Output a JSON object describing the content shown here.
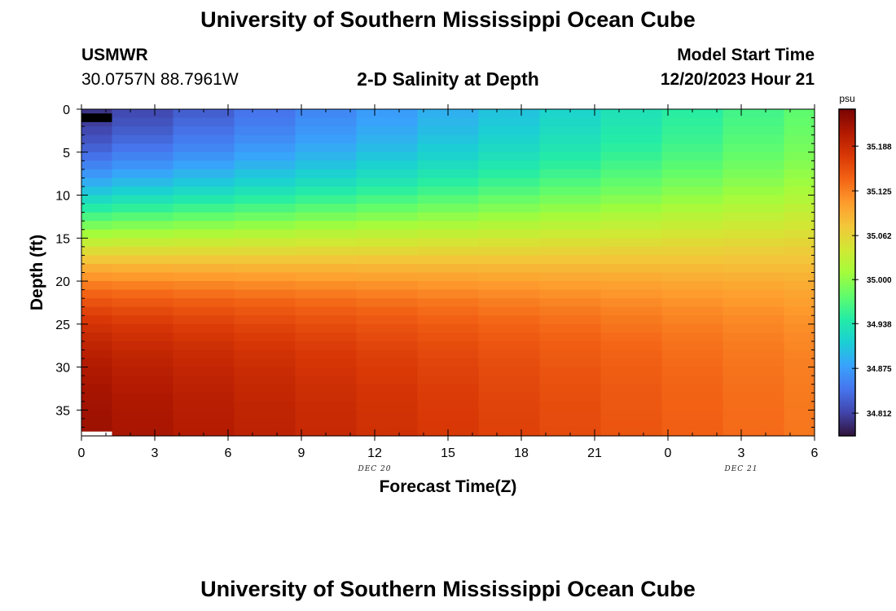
{
  "header": {
    "title": "University of Southern Mississippi Ocean Cube",
    "station": "USMWR",
    "coords": "30.0757N  88.7961W",
    "subtitle": "2-D Salinity at Depth",
    "model_label": "Model Start Time",
    "model_time": "12/20/2023 Hour 21"
  },
  "footer": {
    "title": "University of Southern Mississippi Ocean Cube"
  },
  "chart_data": {
    "type": "heatmap",
    "title": "2-D Salinity at Depth",
    "xlabel": "Forecast Time(Z)",
    "ylabel": "Depth (ft)",
    "x_tick_labels": [
      "0",
      "3",
      "6",
      "9",
      "12",
      "15",
      "18",
      "21",
      "0",
      "3",
      "6"
    ],
    "x_hours": [
      0,
      3,
      6,
      9,
      12,
      15,
      18,
      21,
      24,
      27,
      30
    ],
    "x_range_hours": [
      0,
      30
    ],
    "date_labels": [
      {
        "text": "DEC 20",
        "hour": 12
      },
      {
        "text": "DEC 21",
        "hour": 27
      }
    ],
    "y_ticks": [
      0,
      5,
      10,
      15,
      20,
      25,
      30,
      35
    ],
    "y_range": [
      0,
      38
    ],
    "y_reversed": true,
    "colorbar": {
      "unit": "psu",
      "ticks": [
        "34.812",
        "34.875",
        "34.938",
        "35.000",
        "35.062",
        "35.125",
        "35.188"
      ],
      "range": [
        34.78,
        35.24
      ],
      "colors": [
        "#30123b",
        "#4145ab",
        "#4675ed",
        "#39a2fc",
        "#1bcfd4",
        "#24eca6",
        "#61fc6c",
        "#a4fc3b",
        "#d1e834",
        "#f3c63a",
        "#fe9b2d",
        "#f36315",
        "#d93806",
        "#b11901",
        "#7a0403"
      ]
    },
    "time_edges_hours": [
      0,
      1.25,
      3.75,
      6.25,
      8.75,
      11.25,
      13.75,
      16.25,
      18.75,
      21.25,
      23.75,
      26.25,
      28.75,
      30
    ],
    "profile_params": {
      "columns": 13,
      "layers": 38,
      "surface_salinity_start": 34.8,
      "surface_salinity_end": 34.975,
      "bottom_salinity_start": 35.22,
      "bottom_salinity_end": 35.13,
      "halocline_depth_ft": 14,
      "halocline_width_ft": 5
    },
    "missing_cells": [
      {
        "column": 0,
        "from_depth": 0.5,
        "to_depth": 1.5,
        "color": "#000000"
      },
      {
        "column": 0,
        "from_depth": 37.5,
        "to_depth": 38,
        "color": "#ffffff"
      }
    ]
  }
}
